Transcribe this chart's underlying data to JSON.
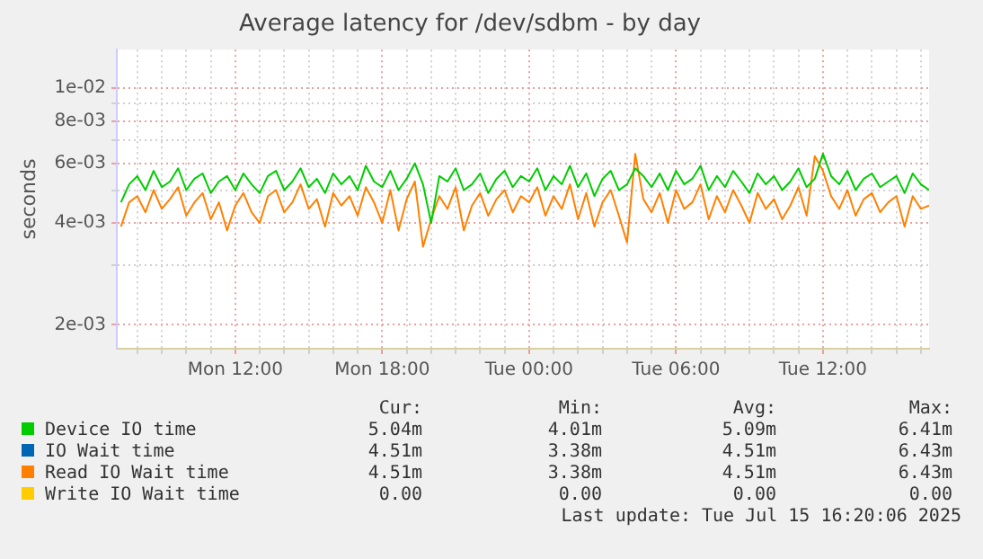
{
  "chart_data": {
    "type": "line",
    "title": "Average latency for /dev/sdbm - by day",
    "ylabel": "seconds",
    "log": "y",
    "grid": true,
    "legend": "bottom",
    "marker": "none",
    "line_style": "solid",
    "xlim": [
      "2025-07-14T07:10",
      "2025-07-15T16:20"
    ],
    "ylim": [
      0.0017,
      0.013
    ],
    "xticks": [
      {
        "value": "2025-07-14T08:00",
        "label": null
      },
      {
        "value": "2025-07-14T09:00",
        "label": null
      },
      {
        "value": "2025-07-14T10:00",
        "label": null
      },
      {
        "value": "2025-07-14T11:00",
        "label": null
      },
      {
        "value": "2025-07-14T12:00",
        "label": "Mon 12:00"
      },
      {
        "value": "2025-07-14T13:00",
        "label": null
      },
      {
        "value": "2025-07-14T14:00",
        "label": null
      },
      {
        "value": "2025-07-14T15:00",
        "label": null
      },
      {
        "value": "2025-07-14T16:00",
        "label": null
      },
      {
        "value": "2025-07-14T17:00",
        "label": null
      },
      {
        "value": "2025-07-14T18:00",
        "label": "Mon 18:00"
      },
      {
        "value": "2025-07-14T19:00",
        "label": null
      },
      {
        "value": "2025-07-14T20:00",
        "label": null
      },
      {
        "value": "2025-07-14T21:00",
        "label": null
      },
      {
        "value": "2025-07-14T22:00",
        "label": null
      },
      {
        "value": "2025-07-14T23:00",
        "label": null
      },
      {
        "value": "2025-07-15T00:00",
        "label": "Tue 00:00"
      },
      {
        "value": "2025-07-15T01:00",
        "label": null
      },
      {
        "value": "2025-07-15T02:00",
        "label": null
      },
      {
        "value": "2025-07-15T03:00",
        "label": null
      },
      {
        "value": "2025-07-15T04:00",
        "label": null
      },
      {
        "value": "2025-07-15T05:00",
        "label": null
      },
      {
        "value": "2025-07-15T06:00",
        "label": "Tue 06:00"
      },
      {
        "value": "2025-07-15T07:00",
        "label": null
      },
      {
        "value": "2025-07-15T08:00",
        "label": null
      },
      {
        "value": "2025-07-15T09:00",
        "label": null
      },
      {
        "value": "2025-07-15T10:00",
        "label": null
      },
      {
        "value": "2025-07-15T11:00",
        "label": null
      },
      {
        "value": "2025-07-15T12:00",
        "label": "Tue 12:00"
      },
      {
        "value": "2025-07-15T13:00",
        "label": null
      },
      {
        "value": "2025-07-15T14:00",
        "label": null
      },
      {
        "value": "2025-07-15T15:00",
        "label": null
      },
      {
        "value": "2025-07-15T16:00",
        "label": null
      }
    ],
    "yticks": [
      {
        "value": 0.002,
        "label": "2e-03"
      },
      {
        "value": 0.003,
        "label": null
      },
      {
        "value": 0.004,
        "label": "4e-03"
      },
      {
        "value": 0.005,
        "label": null
      },
      {
        "value": 0.006,
        "label": "6e-03"
      },
      {
        "value": 0.007,
        "label": null
      },
      {
        "value": 0.008,
        "label": "8e-03"
      },
      {
        "value": 0.009,
        "label": null
      },
      {
        "value": 0.01,
        "label": "1e-02"
      }
    ],
    "x": [
      "2025-07-14T07:20",
      "2025-07-14T07:40",
      "2025-07-14T08:00",
      "2025-07-14T08:20",
      "2025-07-14T08:40",
      "2025-07-14T09:00",
      "2025-07-14T09:20",
      "2025-07-14T09:40",
      "2025-07-14T10:00",
      "2025-07-14T10:20",
      "2025-07-14T10:40",
      "2025-07-14T11:00",
      "2025-07-14T11:20",
      "2025-07-14T11:40",
      "2025-07-14T12:00",
      "2025-07-14T12:20",
      "2025-07-14T12:40",
      "2025-07-14T13:00",
      "2025-07-14T13:20",
      "2025-07-14T13:40",
      "2025-07-14T14:00",
      "2025-07-14T14:20",
      "2025-07-14T14:40",
      "2025-07-14T15:00",
      "2025-07-14T15:20",
      "2025-07-14T15:40",
      "2025-07-14T16:00",
      "2025-07-14T16:20",
      "2025-07-14T16:40",
      "2025-07-14T17:00",
      "2025-07-14T17:20",
      "2025-07-14T17:40",
      "2025-07-14T18:00",
      "2025-07-14T18:20",
      "2025-07-14T18:40",
      "2025-07-14T19:00",
      "2025-07-14T19:20",
      "2025-07-14T19:40",
      "2025-07-14T20:00",
      "2025-07-14T20:20",
      "2025-07-14T20:40",
      "2025-07-14T21:00",
      "2025-07-14T21:20",
      "2025-07-14T21:40",
      "2025-07-14T22:00",
      "2025-07-14T22:20",
      "2025-07-14T22:40",
      "2025-07-14T23:00",
      "2025-07-14T23:20",
      "2025-07-14T23:40",
      "2025-07-15T00:00",
      "2025-07-15T00:20",
      "2025-07-15T00:40",
      "2025-07-15T01:00",
      "2025-07-15T01:20",
      "2025-07-15T01:40",
      "2025-07-15T02:00",
      "2025-07-15T02:20",
      "2025-07-15T02:40",
      "2025-07-15T03:00",
      "2025-07-15T03:20",
      "2025-07-15T03:40",
      "2025-07-15T04:00",
      "2025-07-15T04:20",
      "2025-07-15T04:40",
      "2025-07-15T05:00",
      "2025-07-15T05:20",
      "2025-07-15T05:40",
      "2025-07-15T06:00",
      "2025-07-15T06:20",
      "2025-07-15T06:40",
      "2025-07-15T07:00",
      "2025-07-15T07:20",
      "2025-07-15T07:40",
      "2025-07-15T08:00",
      "2025-07-15T08:20",
      "2025-07-15T08:40",
      "2025-07-15T09:00",
      "2025-07-15T09:20",
      "2025-07-15T09:40",
      "2025-07-15T10:00",
      "2025-07-15T10:20",
      "2025-07-15T10:40",
      "2025-07-15T11:00",
      "2025-07-15T11:20",
      "2025-07-15T11:40",
      "2025-07-15T12:00",
      "2025-07-15T12:20",
      "2025-07-15T12:40",
      "2025-07-15T13:00",
      "2025-07-15T13:20",
      "2025-07-15T13:40",
      "2025-07-15T14:00",
      "2025-07-15T14:20",
      "2025-07-15T14:40",
      "2025-07-15T15:00",
      "2025-07-15T15:20",
      "2025-07-15T15:40",
      "2025-07-15T16:00",
      "2025-07-15T16:20"
    ],
    "series": [
      {
        "name": "Device IO time",
        "color": "#00cc00",
        "values": [
          0.0046,
          0.0052,
          0.0055,
          0.005,
          0.0057,
          0.0051,
          0.0053,
          0.0058,
          0.005,
          0.0054,
          0.0056,
          0.0049,
          0.0053,
          0.0055,
          0.005,
          0.0056,
          0.0052,
          0.0049,
          0.0055,
          0.0057,
          0.005,
          0.0053,
          0.0058,
          0.0051,
          0.0054,
          0.0049,
          0.0056,
          0.0052,
          0.0055,
          0.005,
          0.0059,
          0.0053,
          0.0051,
          0.0057,
          0.005,
          0.0054,
          0.006,
          0.0052,
          0.004,
          0.0055,
          0.0053,
          0.0058,
          0.005,
          0.0052,
          0.0056,
          0.0049,
          0.0054,
          0.0057,
          0.0051,
          0.0055,
          0.0053,
          0.0058,
          0.005,
          0.0055,
          0.0052,
          0.0059,
          0.0051,
          0.0056,
          0.0048,
          0.0054,
          0.0057,
          0.005,
          0.0052,
          0.0058,
          0.0055,
          0.0051,
          0.0056,
          0.005,
          0.0057,
          0.0052,
          0.0054,
          0.0059,
          0.005,
          0.0055,
          0.0051,
          0.0057,
          0.0053,
          0.0049,
          0.0056,
          0.0052,
          0.0055,
          0.005,
          0.0053,
          0.0058,
          0.0051,
          0.0054,
          0.0064,
          0.0055,
          0.0052,
          0.0057,
          0.005,
          0.0054,
          0.0056,
          0.0051,
          0.0053,
          0.0055,
          0.0049,
          0.0056,
          0.0052,
          0.005
        ]
      },
      {
        "name": "IO Wait time",
        "color": "#0066b3",
        "values": [
          null,
          null,
          null,
          null,
          null,
          null,
          null,
          null,
          null,
          null,
          null,
          null,
          null,
          null,
          null,
          null,
          null,
          null,
          null,
          null,
          null,
          null,
          null,
          null,
          null,
          null,
          null,
          null,
          null,
          null,
          null,
          null,
          null,
          null,
          null,
          null,
          null,
          null,
          null,
          null,
          null,
          null,
          null,
          null,
          null,
          null,
          null,
          null,
          null,
          null,
          null,
          null,
          null,
          null,
          null,
          null,
          null,
          null,
          null,
          null,
          null,
          null,
          null,
          null,
          null,
          null,
          null,
          null,
          null,
          null,
          null,
          null,
          null,
          null,
          null,
          null,
          null,
          null,
          null,
          null,
          null,
          null,
          null,
          null,
          null,
          null,
          null,
          null,
          null,
          null,
          null,
          null,
          null,
          null,
          null,
          null,
          null,
          null,
          null,
          null
        ]
      },
      {
        "name": "Read IO Wait time",
        "color": "#ff8000",
        "values": [
          0.0039,
          0.0046,
          0.0048,
          0.0043,
          0.005,
          0.0044,
          0.0047,
          0.0051,
          0.0042,
          0.0046,
          0.0049,
          0.0041,
          0.0046,
          0.0038,
          0.0045,
          0.0049,
          0.0043,
          0.004,
          0.0048,
          0.005,
          0.0043,
          0.0046,
          0.0052,
          0.0044,
          0.0047,
          0.0039,
          0.0049,
          0.0045,
          0.0048,
          0.0042,
          0.0051,
          0.0046,
          0.004,
          0.005,
          0.0038,
          0.0047,
          0.0053,
          0.0034,
          0.0041,
          0.0048,
          0.0044,
          0.0051,
          0.0038,
          0.0045,
          0.0049,
          0.0042,
          0.0047,
          0.005,
          0.0043,
          0.0048,
          0.0046,
          0.0051,
          0.0042,
          0.0048,
          0.0044,
          0.0052,
          0.0041,
          0.0049,
          0.0039,
          0.0046,
          0.005,
          0.0042,
          0.0035,
          0.0064,
          0.0047,
          0.0043,
          0.0049,
          0.004,
          0.005,
          0.0044,
          0.0046,
          0.0052,
          0.0041,
          0.0048,
          0.0043,
          0.005,
          0.0045,
          0.004,
          0.0049,
          0.0044,
          0.0047,
          0.0041,
          0.0045,
          0.0051,
          0.0042,
          0.0063,
          0.0057,
          0.0048,
          0.0044,
          0.005,
          0.0042,
          0.0047,
          0.0049,
          0.0043,
          0.0046,
          0.0048,
          0.0039,
          0.0048,
          0.0044,
          0.0045
        ]
      },
      {
        "name": "Write IO Wait time",
        "color": "#ffcc00",
        "values": [
          null,
          null,
          null,
          null,
          null,
          null,
          null,
          null,
          null,
          null,
          null,
          null,
          null,
          null,
          null,
          null,
          null,
          null,
          null,
          null,
          null,
          null,
          null,
          null,
          null,
          null,
          null,
          null,
          null,
          null,
          null,
          null,
          null,
          null,
          null,
          null,
          null,
          null,
          null,
          null,
          null,
          null,
          null,
          null,
          null,
          null,
          null,
          null,
          null,
          null,
          null,
          null,
          null,
          null,
          null,
          null,
          null,
          null,
          null,
          null,
          null,
          null,
          null,
          null,
          null,
          null,
          null,
          null,
          null,
          null,
          null,
          null,
          null,
          null,
          null,
          null,
          null,
          null,
          null,
          null,
          null,
          null,
          null,
          null,
          null,
          null,
          null,
          null,
          null,
          null,
          null,
          null,
          null,
          null,
          null,
          null,
          null,
          null,
          null,
          null
        ]
      }
    ],
    "annotations": [
      "Cur:",
      "Min:",
      "Avg:",
      "Max:",
      "5.04m",
      "4.01m",
      "5.09m",
      "6.41m",
      "4.51m",
      "3.38m",
      "4.51m",
      "6.43m",
      "4.51m",
      "3.38m",
      "4.51m",
      "6.43m",
      "0.00",
      "0.00",
      "0.00",
      "0.00",
      "Last update: Tue Jul 15 16:20:06 2025"
    ]
  }
}
